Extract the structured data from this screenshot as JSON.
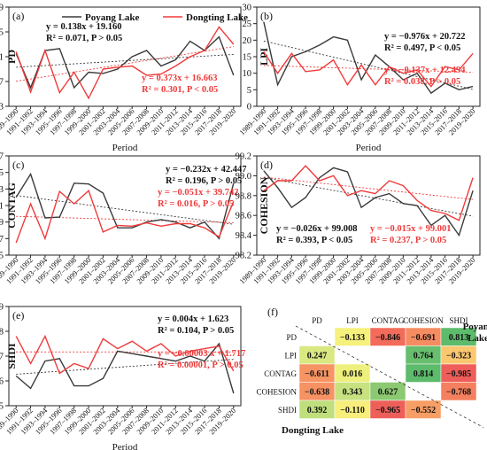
{
  "legend": {
    "series": [
      "Poyang Lake",
      "Dongting Lake"
    ]
  },
  "colors": {
    "poyang": "#3a3a3a",
    "dongting": "#f03a3a",
    "grid_axis": "#222222"
  },
  "chart_data": [
    {
      "id": "a",
      "panel_label": "(a)",
      "type": "line",
      "ylabel": "PD",
      "xlabel": "Period",
      "ylim": [
        13,
        29
      ],
      "yticks": [
        13,
        17,
        21,
        25,
        29
      ],
      "categories": [
        "1989–1990",
        "1991–1992",
        "1993–1994",
        "1995–1996",
        "1997–1998",
        "1999–2000",
        "2001–2002",
        "2003–2004",
        "2005–2006",
        "2007–2008",
        "2009–2010",
        "2011–2012",
        "2013–2014",
        "2015–2016",
        "2017–2018",
        "2019–2020"
      ],
      "series": [
        {
          "name": "Poyang Lake",
          "color": "#3a3a3a",
          "values": [
            21.5,
            16.0,
            22.0,
            22.3,
            16.0,
            18.5,
            18.3,
            19.0,
            21.0,
            22.0,
            19.5,
            20.5,
            23.5,
            22.0,
            24.2,
            18.0
          ]
        },
        {
          "name": "Dongting Lake",
          "color": "#f03a3a",
          "values": [
            21.8,
            15.3,
            22.0,
            15.2,
            18.5,
            14.3,
            19.0,
            19.3,
            19.5,
            18.0,
            18.2,
            19.5,
            21.0,
            22.0,
            25.8,
            23.0
          ]
        }
      ],
      "trends": [
        {
          "color": "#3a3a3a",
          "slope": 0.138,
          "intercept": 19.16
        },
        {
          "color": "#f03a3a",
          "slope": 0.373,
          "intercept": 16.663
        }
      ],
      "annotations": [
        {
          "color": "#111111",
          "lines": [
            "y = 0.138x + 19.160",
            "R² = 0.071, P > 0.05"
          ]
        },
        {
          "color": "#f03a3a",
          "lines": [
            "y = 0.373x + 16.663",
            "R² = 0.301, P < 0.05"
          ]
        }
      ]
    },
    {
      "id": "b",
      "panel_label": "(b)",
      "type": "line",
      "ylabel": "LPI",
      "xlabel": "Period",
      "ylim": [
        0,
        30
      ],
      "yticks": [
        0,
        5,
        10,
        15,
        20,
        25,
        30
      ],
      "categories": [
        "1989–1990",
        "1991–1992",
        "1993–1994",
        "1995–1996",
        "1997–1998",
        "1999–2000",
        "2001–2002",
        "2003–2004",
        "2005–2006",
        "2007–2008",
        "2009–2010",
        "2011–2012",
        "2013–2014",
        "2015–2016",
        "2017–2018",
        "2019–2020"
      ],
      "series": [
        {
          "name": "Poyang Lake",
          "color": "#3a3a3a",
          "values": [
            25.5,
            6.5,
            15.0,
            16.5,
            18.5,
            21.0,
            20.0,
            8.0,
            15.5,
            12.0,
            8.0,
            10.0,
            4.0,
            7.0,
            5.0,
            6.0
          ]
        },
        {
          "name": "Dongting Lake",
          "color": "#f03a3a",
          "values": [
            16.5,
            10.0,
            16.0,
            10.5,
            11.0,
            14.0,
            6.5,
            12.5,
            6.5,
            12.0,
            10.0,
            11.0,
            6.0,
            12.0,
            11.0,
            16.0
          ]
        }
      ],
      "trends": [
        {
          "color": "#3a3a3a",
          "slope": -0.976,
          "intercept": 20.722
        },
        {
          "color": "#f03a3a",
          "slope": -0.137,
          "intercept": 12.494
        }
      ],
      "annotations": [
        {
          "color": "#111111",
          "lines": [
            "y = −0.976x + 20.722",
            "R² = 0.497, P < 0.05"
          ]
        },
        {
          "color": "#f03a3a",
          "lines": [
            "y = −0.137x + 12.494",
            "R² = 0.038, P > 0.05"
          ]
        }
      ]
    },
    {
      "id": "c",
      "panel_label": "(c)",
      "type": "line",
      "ylabel": "CONTAG",
      "xlabel": "",
      "ylim": [
        35,
        47
      ],
      "yticks": [
        35,
        37,
        39,
        41,
        43,
        45,
        47
      ],
      "categories": [
        "1989–1990",
        "1991–1992",
        "1993–1994",
        "1995–1996",
        "1997–1998",
        "1999–2000",
        "2001–2002",
        "2003–2004",
        "2005–2006",
        "2007–2008",
        "2009–2010",
        "2011–2012",
        "2013–2014",
        "2015–2016",
        "2017–2018",
        "2019–2020"
      ],
      "series": [
        {
          "name": "Poyang Lake",
          "color": "#3a3a3a",
          "values": [
            42.0,
            44.8,
            39.5,
            39.6,
            43.7,
            43.6,
            42.5,
            38.3,
            38.3,
            39.0,
            39.3,
            39.0,
            38.3,
            39.0,
            37.0,
            43.7
          ]
        },
        {
          "name": "Dongting Lake",
          "color": "#f03a3a",
          "values": [
            36.5,
            41.2,
            37.0,
            42.7,
            41.2,
            42.8,
            37.8,
            38.6,
            38.5,
            38.9,
            38.5,
            38.8,
            38.8,
            38.3,
            37.2,
            41.5
          ]
        }
      ],
      "trends": [
        {
          "color": "#3a3a3a",
          "slope": -0.232,
          "intercept": 42.447
        },
        {
          "color": "#f03a3a",
          "slope": -0.051,
          "intercept": 39.742
        }
      ],
      "annotations": [
        {
          "color": "#111111",
          "lines": [
            "y = −0.232x + 42.447",
            "R² = 0.196, P > 0.05"
          ]
        },
        {
          "color": "#f03a3a",
          "lines": [
            "y = −0.051x + 39.742",
            "R² = 0.016, P > 0.05"
          ]
        }
      ]
    },
    {
      "id": "d",
      "panel_label": "(d)",
      "type": "line",
      "ylabel": "COHESION",
      "xlabel": "",
      "ylim": [
        98.2,
        99.2
      ],
      "yticks": [
        98.2,
        98.4,
        98.6,
        98.8,
        99.0,
        99.2
      ],
      "categories": [
        "1989–1990",
        "1991–1992",
        "1993–1994",
        "1995–1996",
        "1997–1998",
        "1999–2000",
        "2001–2002",
        "2003–2004",
        "2005–2006",
        "2007–2008",
        "2009–2010",
        "2011–2012",
        "2013–2014",
        "2015–2016",
        "2017–2018",
        "2019–2020"
      ],
      "series": [
        {
          "name": "Poyang Lake",
          "color": "#3a3a3a",
          "values": [
            99.05,
            98.88,
            98.68,
            98.78,
            98.98,
            99.08,
            99.04,
            98.68,
            98.78,
            98.82,
            98.72,
            98.7,
            98.5,
            98.6,
            98.4,
            98.85
          ]
        },
        {
          "name": "Dongting Lake",
          "color": "#f03a3a",
          "values": [
            98.85,
            98.95,
            98.95,
            99.1,
            98.95,
            99.0,
            98.8,
            98.85,
            98.82,
            98.95,
            98.9,
            98.75,
            98.65,
            98.62,
            98.55,
            98.98
          ]
        }
      ],
      "trends": [
        {
          "color": "#3a3a3a",
          "slope": -0.026,
          "intercept": 99.008
        },
        {
          "color": "#f03a3a",
          "slope": -0.015,
          "intercept": 99.001
        }
      ],
      "annotations": [
        {
          "color": "#111111",
          "lines": [
            "y = −0.026x + 99.008",
            "R² = 0.393, P < 0.05"
          ]
        },
        {
          "color": "#f03a3a",
          "lines": [
            "y = −0.015x + 99.001",
            "R² = 0.237, P > 0.05"
          ]
        }
      ]
    },
    {
      "id": "e",
      "panel_label": "(e)",
      "type": "line",
      "ylabel": "SHDI",
      "xlabel": "Period",
      "ylim": [
        1.5,
        1.9
      ],
      "yticks": [
        1.5,
        1.6,
        1.7,
        1.8,
        1.9
      ],
      "categories": [
        "1989–1990",
        "1991–1992",
        "1993–1994",
        "1995–1996",
        "1997–1998",
        "1999–2000",
        "2001–2002",
        "2003–2004",
        "2005–2006",
        "2007–2008",
        "2009–2010",
        "2011–2012",
        "2013–2014",
        "2015–2016",
        "2017–2018",
        "2019–2020"
      ],
      "series": [
        {
          "name": "Poyang Lake",
          "color": "#3a3a3a",
          "values": [
            1.62,
            1.57,
            1.68,
            1.69,
            1.58,
            1.58,
            1.61,
            1.72,
            1.71,
            1.7,
            1.69,
            1.68,
            1.7,
            1.68,
            1.75,
            1.55
          ]
        },
        {
          "name": "Dongting Lake",
          "color": "#f03a3a",
          "values": [
            1.78,
            1.67,
            1.78,
            1.63,
            1.67,
            1.65,
            1.77,
            1.73,
            1.76,
            1.72,
            1.75,
            1.7,
            1.72,
            1.73,
            1.74,
            1.64
          ]
        }
      ],
      "trends": [
        {
          "color": "#3a3a3a",
          "slope": 0.004,
          "intercept": 1.623
        },
        {
          "color": "#f03a3a",
          "slope": -3e-05,
          "intercept": 1.717
        }
      ],
      "annotations": [
        {
          "color": "#111111",
          "lines": [
            "y = 0.004x + 1.623",
            "R² = 0.104, P > 0.05"
          ]
        },
        {
          "color": "#f03a3a",
          "lines": [
            "y = −0.00003 x + 1.717",
            "R² = 0.00001, P > 0.05"
          ]
        }
      ]
    },
    {
      "id": "f",
      "panel_label": "(f)",
      "type": "heatmap",
      "labels": [
        "PD",
        "LPI",
        "CONTAG",
        "COHESION",
        "SHDI"
      ],
      "upper_label": [
        "Poyang",
        "Lake"
      ],
      "lower_label": "Dongting Lake",
      "cells": [
        {
          "row": 0,
          "col": 1,
          "value": "−0.133",
          "color": "#f6f07c"
        },
        {
          "row": 0,
          "col": 2,
          "value": "−0.846",
          "color": "#f26b5b"
        },
        {
          "row": 0,
          "col": 3,
          "value": "−0.691",
          "color": "#f68c62"
        },
        {
          "row": 0,
          "col": 4,
          "value": "0.813",
          "color": "#5dbb6c"
        },
        {
          "row": 1,
          "col": 0,
          "value": "0.247",
          "color": "#d9e881"
        },
        {
          "row": 1,
          "col": 3,
          "value": "0.764",
          "color": "#67be6d"
        },
        {
          "row": 1,
          "col": 4,
          "value": "−0.323",
          "color": "#fbc870"
        },
        {
          "row": 2,
          "col": 0,
          "value": "−0.611",
          "color": "#f69464"
        },
        {
          "row": 2,
          "col": 1,
          "value": "0.016",
          "color": "#eef07d"
        },
        {
          "row": 2,
          "col": 3,
          "value": "0.814",
          "color": "#5dbb6c"
        },
        {
          "row": 2,
          "col": 4,
          "value": "−0.985",
          "color": "#ef5d5a"
        },
        {
          "row": 3,
          "col": 0,
          "value": "−0.638",
          "color": "#f69263"
        },
        {
          "row": 3,
          "col": 1,
          "value": "0.343",
          "color": "#c7e27f"
        },
        {
          "row": 3,
          "col": 2,
          "value": "0.627",
          "color": "#8cc972"
        },
        {
          "row": 3,
          "col": 4,
          "value": "−0.768",
          "color": "#f4805f"
        },
        {
          "row": 4,
          "col": 0,
          "value": "0.392",
          "color": "#bfdf7d"
        },
        {
          "row": 4,
          "col": 1,
          "value": "−0.110",
          "color": "#f7ee7c"
        },
        {
          "row": 4,
          "col": 2,
          "value": "−0.965",
          "color": "#ef5f5a"
        },
        {
          "row": 4,
          "col": 3,
          "value": "−0.552",
          "color": "#f79e66"
        }
      ]
    }
  ]
}
